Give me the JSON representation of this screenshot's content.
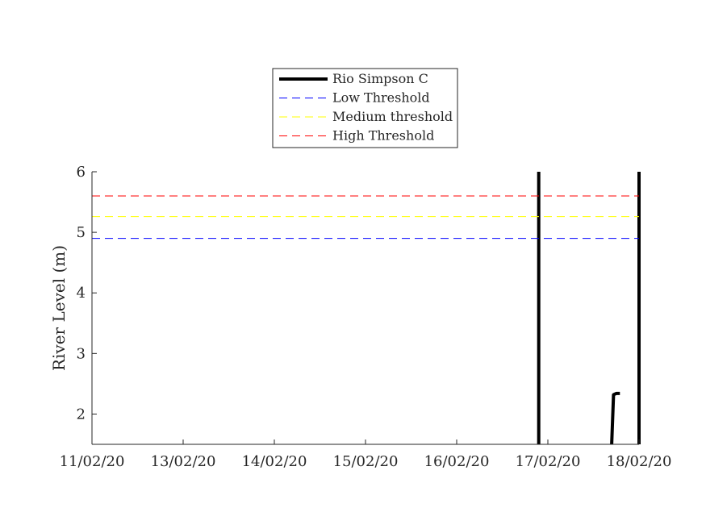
{
  "chart_data": {
    "type": "line",
    "title": "",
    "xlabel": "",
    "ylabel": "River Level (m)",
    "ylim": [
      1.5,
      6
    ],
    "yticks": [
      2,
      3,
      4,
      5,
      6
    ],
    "x_tick_labels": [
      "11/02/20",
      "13/02/20",
      "14/02/20",
      "15/02/20",
      "16/02/20",
      "17/02/20",
      "18/02/20"
    ],
    "grid": false,
    "legend_position": "top-center",
    "series": [
      {
        "name": "Rio Simpson C",
        "style": "solid",
        "color": "#000000",
        "segments": [
          {
            "x": [
              4.9,
              4.9
            ],
            "y": [
              1.5,
              6
            ]
          },
          {
            "x": [
              5.7,
              5.72,
              5.75,
              5.79
            ],
            "y": [
              1.5,
              2.32,
              2.34,
              2.34
            ]
          },
          {
            "x": [
              6.0,
              6.0
            ],
            "y": [
              1.5,
              6
            ]
          }
        ]
      },
      {
        "name": "Low Threshold",
        "style": "dashed",
        "color": "#0000ff",
        "y": 4.9
      },
      {
        "name": "Medium threshold",
        "style": "dashed",
        "color": "#ffff00",
        "y": 5.26
      },
      {
        "name": "High Threshold",
        "style": "dashed",
        "color": "#ff0000",
        "y": 5.6
      }
    ]
  }
}
